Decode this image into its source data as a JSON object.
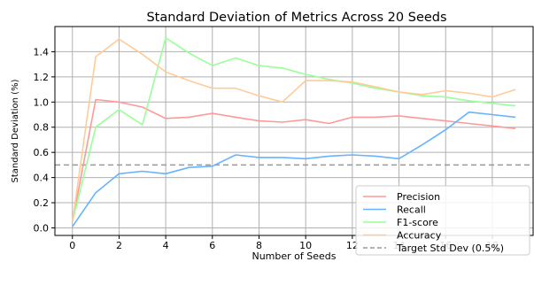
{
  "chart_data": {
    "type": "line",
    "title": "Standard Deviation of Metrics Across 20 Seeds",
    "xlabel": "Number of Seeds",
    "ylabel": "Standard Deviation (%)",
    "xlim": [
      -0.75,
      19.75
    ],
    "ylim": [
      -0.06,
      1.6
    ],
    "xticks": [
      0,
      2,
      4,
      6,
      8,
      10,
      12,
      14,
      16,
      18
    ],
    "yticks": [
      0.0,
      0.2,
      0.4,
      0.6,
      0.8,
      1.0,
      1.2,
      1.4
    ],
    "ytick_labels": [
      "0.0",
      "0.2",
      "0.4",
      "0.6",
      "0.8",
      "1.0",
      "1.2",
      "1.4"
    ],
    "grid": true,
    "legend_position": "lower-right",
    "x": [
      0,
      1,
      2,
      3,
      4,
      5,
      6,
      7,
      8,
      9,
      10,
      11,
      12,
      13,
      14,
      15,
      16,
      17,
      18,
      19
    ],
    "series": [
      {
        "name": "Precision",
        "color": "#ff9999",
        "values": [
          0.05,
          1.02,
          1.0,
          0.96,
          0.87,
          0.88,
          0.91,
          0.88,
          0.85,
          0.84,
          0.86,
          0.83,
          0.88,
          0.88,
          0.89,
          0.87,
          0.85,
          0.83,
          0.81,
          0.79
        ]
      },
      {
        "name": "Recall",
        "color": "#66b3ff",
        "values": [
          0.01,
          0.28,
          0.43,
          0.45,
          0.43,
          0.48,
          0.49,
          0.58,
          0.56,
          0.56,
          0.55,
          0.57,
          0.58,
          0.57,
          0.55,
          0.66,
          0.78,
          0.92,
          0.9,
          0.88
        ]
      },
      {
        "name": "F1-score",
        "color": "#99ff99",
        "values": [
          0.05,
          0.8,
          0.94,
          0.82,
          1.51,
          1.39,
          1.29,
          1.35,
          1.29,
          1.27,
          1.22,
          1.18,
          1.15,
          1.11,
          1.08,
          1.05,
          1.04,
          1.01,
          0.99,
          0.97
        ]
      },
      {
        "name": "Accuracy",
        "color": "#ffcc99",
        "values": [
          0.05,
          1.36,
          1.5,
          1.38,
          1.24,
          1.17,
          1.11,
          1.11,
          1.05,
          1.0,
          1.17,
          1.17,
          1.16,
          1.12,
          1.08,
          1.06,
          1.09,
          1.07,
          1.04,
          1.1
        ]
      }
    ],
    "reference_line": {
      "name": "Target Std Dev (0.5%)",
      "y": 0.5,
      "color": "#999999",
      "style": "dashed"
    }
  }
}
